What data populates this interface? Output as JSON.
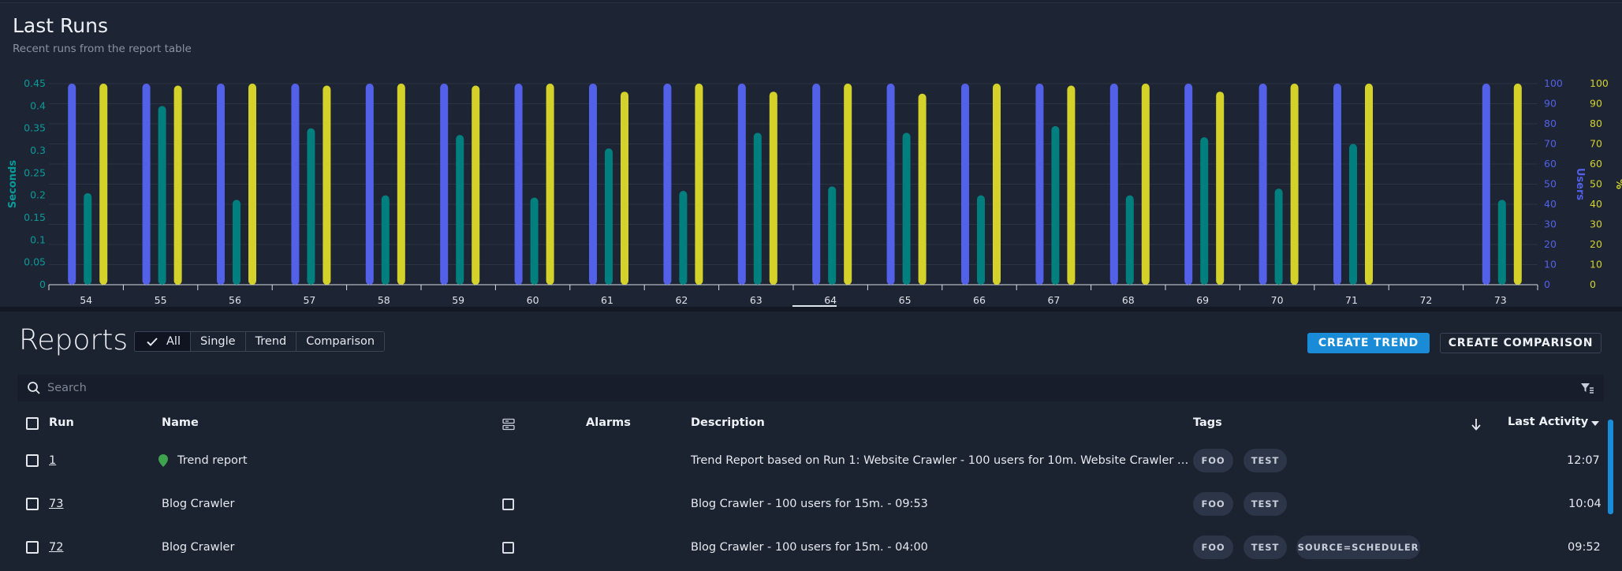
{
  "chart": {
    "title": "Last Runs",
    "subtitle": "Recent runs from the report table",
    "left_axis_title": "Seconds",
    "right_axis_users_title": "Users",
    "right_axis_percent_title": "%",
    "colors": {
      "seconds": "#007f7f",
      "users": "#5360e8",
      "percent": "#d4d22a",
      "left_axis": "#0a9a9a"
    }
  },
  "chart_data": {
    "type": "bar",
    "categories": [
      "54",
      "55",
      "56",
      "57",
      "58",
      "59",
      "60",
      "61",
      "62",
      "63",
      "64",
      "65",
      "66",
      "67",
      "68",
      "69",
      "70",
      "71",
      "72",
      "73"
    ],
    "series": [
      {
        "name": "Users",
        "axis": "users",
        "values": [
          100,
          100,
          100,
          100,
          100,
          100,
          100,
          100,
          100,
          100,
          100,
          100,
          100,
          100,
          100,
          100,
          100,
          100,
          null,
          100
        ]
      },
      {
        "name": "Seconds",
        "axis": "seconds",
        "values": [
          0.205,
          0.4,
          0.19,
          0.35,
          0.2,
          0.335,
          0.195,
          0.305,
          0.21,
          0.34,
          0.22,
          0.34,
          0.2,
          0.355,
          0.2,
          0.33,
          0.215,
          0.315,
          null,
          0.19
        ]
      },
      {
        "name": "%",
        "axis": "percent",
        "values": [
          100,
          99,
          100,
          99,
          100,
          99,
          100,
          96,
          100,
          96,
          100,
          95,
          100,
          99,
          100,
          96,
          100,
          100,
          null,
          100
        ]
      }
    ],
    "axes": {
      "seconds": {
        "label": "Seconds",
        "ylim": [
          0,
          0.45
        ],
        "ticks": [
          "0",
          "0.05",
          "0.1",
          "0.15",
          "0.2",
          "0.25",
          "0.3",
          "0.35",
          "0.4",
          "0.45"
        ]
      },
      "users": {
        "label": "Users",
        "ylim": [
          0,
          100
        ],
        "ticks": [
          "0",
          "10",
          "20",
          "30",
          "40",
          "50",
          "60",
          "70",
          "80",
          "90",
          "100"
        ]
      },
      "percent": {
        "label": "%",
        "ylim": [
          0,
          100
        ],
        "ticks": [
          "0",
          "10",
          "20",
          "30",
          "40",
          "50",
          "60",
          "70",
          "80",
          "90",
          "100"
        ]
      }
    },
    "grid": true
  },
  "reports": {
    "title": "Reports",
    "filters": [
      {
        "label": "All",
        "active": true
      },
      {
        "label": "Single",
        "active": false
      },
      {
        "label": "Trend",
        "active": false
      },
      {
        "label": "Comparison",
        "active": false
      }
    ],
    "create_trend_label": "CREATE TREND",
    "create_comparison_label": "CREATE COMPARISON",
    "search_placeholder": "Search",
    "columns": {
      "run": "Run",
      "name": "Name",
      "alarms": "Alarms",
      "description": "Description",
      "tags": "Tags",
      "last_activity": "Last Activity"
    },
    "rows": [
      {
        "run": "1",
        "name": "Trend report",
        "is_trend": true,
        "description": "Trend Report based on Run 1: Website Crawler - 100 users for 10m. Website Crawler …",
        "tags": [
          "FOO",
          "TEST"
        ],
        "last_activity": "12:07"
      },
      {
        "run": "73",
        "name": "Blog Crawler",
        "is_trend": false,
        "description": "Blog Crawler - 100 users for 15m. - 09:53",
        "tags": [
          "FOO",
          "TEST"
        ],
        "last_activity": "10:04"
      },
      {
        "run": "72",
        "name": "Blog Crawler",
        "is_trend": false,
        "description": "Blog Crawler - 100 users for 15m. - 04:00",
        "tags": [
          "FOO",
          "TEST",
          "SOURCE=SCHEDULER"
        ],
        "last_activity": "09:52"
      }
    ]
  }
}
